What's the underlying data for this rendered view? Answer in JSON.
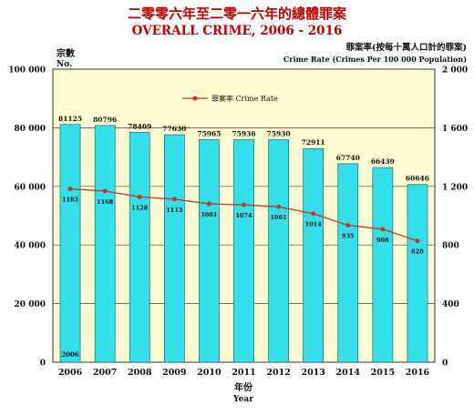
{
  "header": {
    "title_zh": "二零零六年至二零一六年的總體罪案",
    "title_en": "OVERALL CRIME, 2006 - 2016"
  },
  "axes": {
    "left_label_zh": "宗數",
    "left_label_en": "No.",
    "right_label_zh": "罪案率(按每十萬人口計的罪案)",
    "right_label_en": "Crime Rate (Crimes Per 100 000 Population)",
    "x_label_zh": "年份",
    "x_label_en": "Year",
    "left_ticks": [
      "0",
      "20 000",
      "40 000",
      "60 000",
      "80 000",
      "100 000"
    ],
    "right_ticks": [
      "0",
      "400",
      "800",
      "1 200",
      "1 600",
      "2 000"
    ]
  },
  "legend": {
    "label": "罪案率 Crime Rate"
  },
  "colors": {
    "title": "#c00000",
    "plot_background": "#fffbd0",
    "bar_fill": "#33e0ea",
    "bar_stroke": "#0a5a60",
    "line": "#c0392b",
    "text": "#111111"
  },
  "chart_data": {
    "type": "bar",
    "title": "OVERALL CRIME, 2006 - 2016",
    "categories": [
      "2006",
      "2007",
      "2008",
      "2009",
      "2010",
      "2011",
      "2012",
      "2013",
      "2014",
      "2015",
      "2016"
    ],
    "series": [
      {
        "values": [
          81125,
          80796,
          78469,
          77630,
          75965,
          75936,
          75930,
          72911,
          67740,
          66439,
          60646
        ],
        "labels": [
          "81125",
          "80796",
          "78469",
          "77630",
          "75965",
          "75936",
          "75930",
          "72911",
          "67740",
          "66439",
          "60646"
        ]
      },
      {
        "name": "罪案率 Crime Rate",
        "type": "line",
        "axis": "right",
        "values": [
          1183,
          1168,
          1128,
          1113,
          1081,
          1074,
          1061,
          1014,
          935,
          908,
          828
        ],
        "labels": [
          "1183",
          "1168",
          "1128",
          "1113",
          "1081",
          "1074",
          "1061",
          "1014",
          "935",
          "908",
          "828"
        ]
      }
    ],
    "ylim": [
      0,
      100000
    ],
    "y2lim": [
      0,
      2000
    ],
    "legend_position": "top-left",
    "bar_inner_label": "2006"
  }
}
